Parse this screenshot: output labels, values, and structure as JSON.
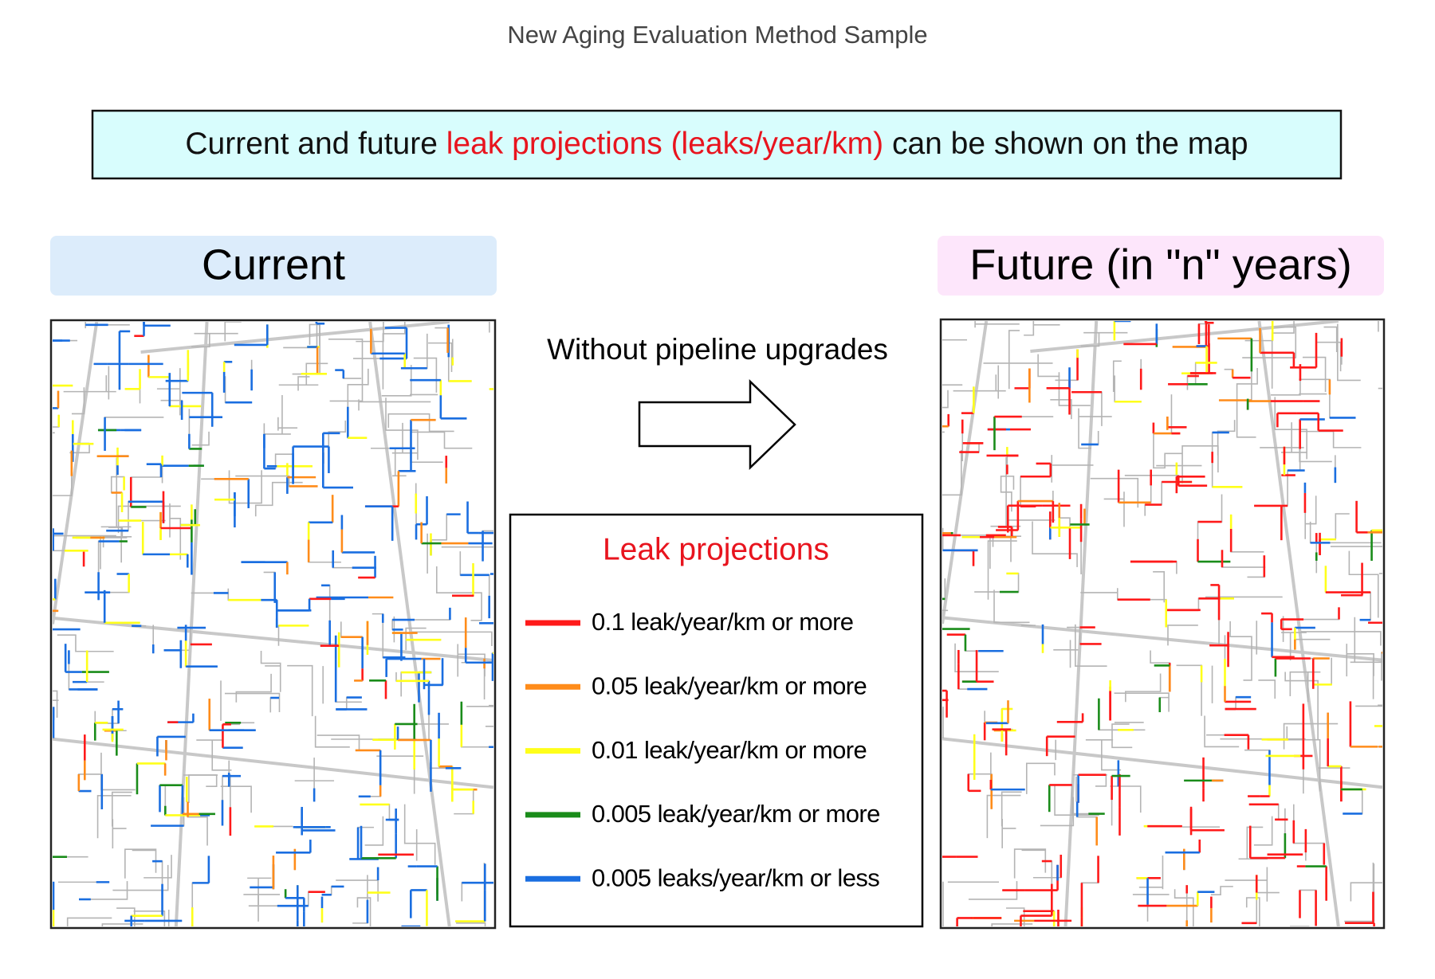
{
  "header": {
    "title": "New Aging Evaluation Method Sample"
  },
  "banner": {
    "parts": [
      "Current and future ",
      "leak projections (leaks/year/km)",
      " can be shown on the map"
    ]
  },
  "panels": [
    {
      "label": "Current"
    },
    {
      "label": "Future (in \"n\" years)"
    }
  ],
  "arrow": {
    "label": "Without pipeline upgrades"
  },
  "legend": {
    "title": "Leak projections",
    "items": [
      {
        "label": "0.1 leak/year/km or more",
        "color": "#ff1a1a"
      },
      {
        "label": "0.05 leak/year/km or more",
        "color": "#ff8c1a"
      },
      {
        "label": "0.01 leak/year/km or more",
        "color": "#ffff1a"
      },
      {
        "label": "0.005 leak/year/km or more",
        "color": "#1a8c1a"
      },
      {
        "label": "0.005 leaks/year/km or less",
        "color": "#1a6ee0"
      }
    ]
  }
}
